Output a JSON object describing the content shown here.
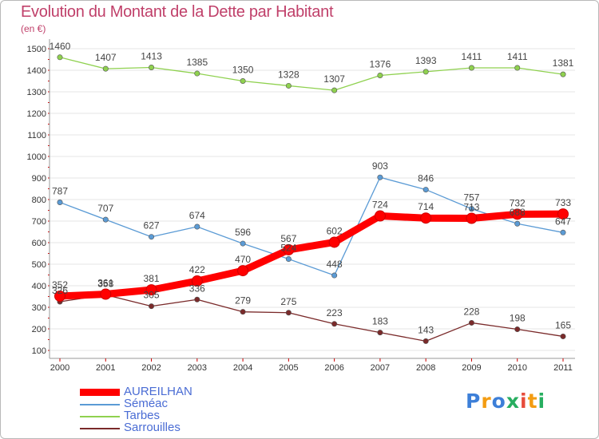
{
  "header": {
    "title": "Evolution du Montant de la Dette par Habitant",
    "subtitle": "(en €)"
  },
  "chart_data": {
    "type": "line",
    "title": "Evolution du Montant de la Dette par Habitant",
    "ylabel": "(en €)",
    "xlabel": "",
    "x": [
      "2000",
      "2001",
      "2002",
      "2003",
      "2004",
      "2005",
      "2006",
      "2007",
      "2008",
      "2009",
      "2010",
      "2011"
    ],
    "ylim": [
      100,
      1500
    ],
    "yticks": [
      100,
      200,
      300,
      400,
      500,
      600,
      700,
      800,
      900,
      1000,
      1100,
      1200,
      1300,
      1400,
      1500
    ],
    "grid": "horizontal",
    "legend_position": "bottom-left",
    "series": [
      {
        "name": "AUREILHAN",
        "color": "#ff0000",
        "values": [
          352,
          361,
          381,
          422,
          470,
          567,
          602,
          724,
          714,
          713,
          732,
          733
        ]
      },
      {
        "name": "Séméac",
        "color": "#5b9bd5",
        "values": [
          787,
          707,
          627,
          674,
          596,
          524,
          448,
          903,
          846,
          757,
          688,
          647
        ]
      },
      {
        "name": "Tarbes",
        "color": "#8fd14f",
        "values": [
          1460,
          1407,
          1413,
          1385,
          1350,
          1328,
          1307,
          1376,
          1393,
          1411,
          1411,
          1381
        ]
      },
      {
        "name": "Sarrouilles",
        "color": "#7a2a2a",
        "values": [
          326,
          358,
          305,
          336,
          279,
          275,
          223,
          183,
          143,
          228,
          198,
          165
        ]
      }
    ]
  },
  "legend": {
    "items": [
      {
        "label": "AUREILHAN",
        "color": "#ff0000"
      },
      {
        "label": "Séméac",
        "color": "#5b9bd5"
      },
      {
        "label": "Tarbes",
        "color": "#8fd14f"
      },
      {
        "label": "Sarrouilles",
        "color": "#7a2a2a"
      }
    ]
  },
  "logo": {
    "text": "Proxiti",
    "colors": [
      "#3d7fd8",
      "#f39c12",
      "#3d7fd8",
      "#27ae60",
      "#e74c3c",
      "#f39c12",
      "#27ae60"
    ]
  }
}
